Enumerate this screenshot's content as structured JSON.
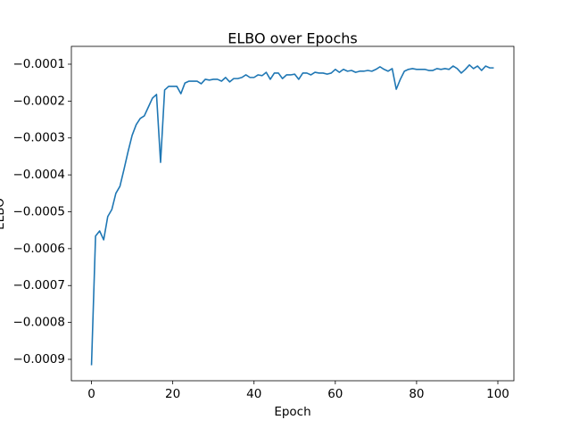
{
  "chart_data": {
    "type": "line",
    "title": "ELBO over Epochs",
    "x_label": "Epoch",
    "y_label": "ELBO",
    "x": [
      0,
      1,
      2,
      3,
      4,
      5,
      6,
      7,
      8,
      9,
      10,
      11,
      12,
      13,
      14,
      15,
      16,
      17,
      18,
      19,
      20,
      21,
      22,
      23,
      24,
      25,
      26,
      27,
      28,
      29,
      30,
      31,
      32,
      33,
      34,
      35,
      36,
      37,
      38,
      39,
      40,
      41,
      42,
      43,
      44,
      45,
      46,
      47,
      48,
      49,
      50,
      51,
      52,
      53,
      54,
      55,
      56,
      57,
      58,
      59,
      60,
      61,
      62,
      63,
      64,
      65,
      66,
      67,
      68,
      69,
      70,
      71,
      72,
      73,
      74,
      75,
      76,
      77,
      78,
      79,
      80,
      81,
      82,
      83,
      84,
      85,
      86,
      87,
      88,
      89,
      90,
      91,
      92,
      93,
      94,
      95,
      96,
      97,
      98,
      99
    ],
    "series": [
      {
        "name": "ELBO",
        "color": "#1f77b4",
        "values": [
          -0.000916,
          -0.000566,
          -0.000552,
          -0.000576,
          -0.000513,
          -0.000494,
          -0.00045,
          -0.000431,
          -0.000385,
          -0.000337,
          -0.000293,
          -0.000264,
          -0.000247,
          -0.00024,
          -0.000216,
          -0.000192,
          -0.000182,
          -0.000366,
          -0.00017,
          -0.00016,
          -0.00016,
          -0.00016,
          -0.00018,
          -0.000151,
          -0.000146,
          -0.000146,
          -0.000146,
          -0.000153,
          -0.000141,
          -0.000143,
          -0.000141,
          -0.000141,
          -0.000146,
          -0.000136,
          -0.000148,
          -0.000139,
          -0.000139,
          -0.000136,
          -0.000129,
          -0.000136,
          -0.000136,
          -0.000129,
          -0.000131,
          -0.000122,
          -0.000141,
          -0.000124,
          -0.000124,
          -0.000139,
          -0.000129,
          -0.000129,
          -0.000127,
          -0.000141,
          -0.000124,
          -0.000124,
          -0.000129,
          -0.000122,
          -0.000124,
          -0.000124,
          -0.000127,
          -0.000124,
          -0.000114,
          -0.000122,
          -0.000114,
          -0.000119,
          -0.000117,
          -0.000122,
          -0.000119,
          -0.000119,
          -0.000117,
          -0.000119,
          -0.000114,
          -0.000107,
          -0.000114,
          -0.000119,
          -0.000112,
          -0.000168,
          -0.000141,
          -0.000119,
          -0.000114,
          -0.000112,
          -0.000114,
          -0.000114,
          -0.000114,
          -0.000117,
          -0.000117,
          -0.000112,
          -0.000114,
          -0.000112,
          -0.000114,
          -0.000105,
          -0.000112,
          -0.000124,
          -0.000114,
          -0.000102,
          -0.000112,
          -0.000105,
          -0.000117,
          -0.000105,
          -0.00011,
          -0.00011
        ]
      }
    ],
    "xlim": [
      -4.95,
      103.95
    ],
    "xticks": [
      0,
      20,
      40,
      60,
      80,
      100
    ],
    "ylim": [
      -0.000958,
      -5.17e-05
    ],
    "yticks": [
      {
        "value": -0.0009,
        "label": "−0.0009"
      },
      {
        "value": -0.0008,
        "label": "−0.0008"
      },
      {
        "value": -0.0007,
        "label": "−0.0007"
      },
      {
        "value": -0.0006,
        "label": "−0.0006"
      },
      {
        "value": -0.0005,
        "label": "−0.0005"
      },
      {
        "value": -0.0004,
        "label": "−0.0004"
      },
      {
        "value": -0.0003,
        "label": "−0.0003"
      },
      {
        "value": -0.0002,
        "label": "−0.0002"
      },
      {
        "value": -0.0001,
        "label": "−0.0001"
      }
    ],
    "grid": false
  }
}
